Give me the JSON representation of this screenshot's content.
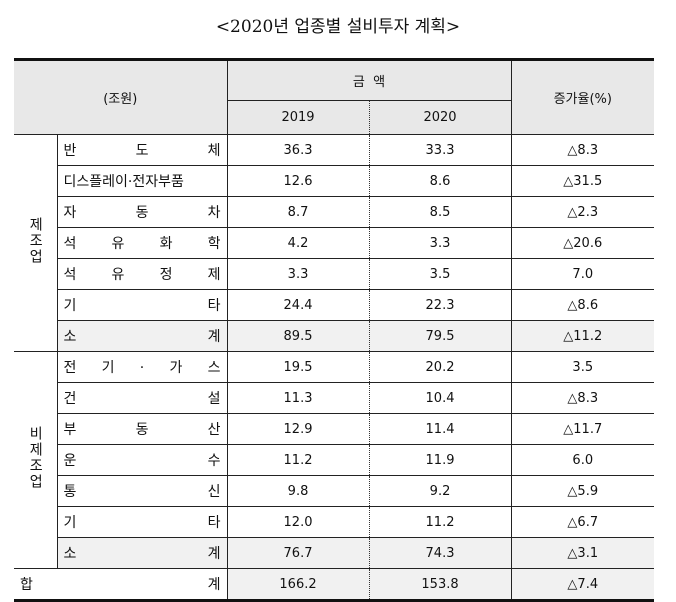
{
  "title": "<2020년 업종별 설비투자 계획>",
  "header": {
    "unit": "(조원)",
    "amount": "금  액",
    "year1": "2019",
    "year2": "2020",
    "growth": "증가율(%)"
  },
  "groups": [
    {
      "name": "제조업",
      "rows": [
        {
          "label": "반 도 체",
          "y2019": "36.3",
          "y2020": "33.3",
          "growth": "△8.3"
        },
        {
          "label": "디스플레이·전자부품",
          "y2019": "12.6",
          "y2020": "8.6",
          "growth": "△31.5"
        },
        {
          "label": "자 동 차",
          "y2019": "8.7",
          "y2020": "8.5",
          "growth": "△2.3"
        },
        {
          "label": "석 유 화 학",
          "y2019": "4.2",
          "y2020": "3.3",
          "growth": "△20.6"
        },
        {
          "label": "석 유 정 제",
          "y2019": "3.3",
          "y2020": "3.5",
          "growth": "7.0"
        },
        {
          "label": "기 타",
          "y2019": "24.4",
          "y2020": "22.3",
          "growth": "△8.6"
        },
        {
          "label": "소 계",
          "y2019": "89.5",
          "y2020": "79.5",
          "growth": "△11.2"
        }
      ]
    },
    {
      "name": "비제조업",
      "rows": [
        {
          "label": "전 기 · 가 스",
          "y2019": "19.5",
          "y2020": "20.2",
          "growth": "3.5"
        },
        {
          "label": "건 설",
          "y2019": "11.3",
          "y2020": "10.4",
          "growth": "△8.3"
        },
        {
          "label": "부 동 산",
          "y2019": "12.9",
          "y2020": "11.4",
          "growth": "△11.7"
        },
        {
          "label": "운 수",
          "y2019": "11.2",
          "y2020": "11.9",
          "growth": "6.0"
        },
        {
          "label": "통 신",
          "y2019": "9.8",
          "y2020": "9.2",
          "growth": "△5.9"
        },
        {
          "label": "기 타",
          "y2019": "12.0",
          "y2020": "11.2",
          "growth": "△6.7"
        },
        {
          "label": "소 계",
          "y2019": "76.7",
          "y2020": "74.3",
          "growth": "△3.1"
        }
      ]
    }
  ],
  "total": {
    "label": "합 계",
    "y2019": "166.2",
    "y2020": "153.8",
    "growth": "△7.4"
  },
  "colors": {
    "header_bg": "#e8e8e8",
    "subtotal_bg": "#f1f1f1"
  }
}
